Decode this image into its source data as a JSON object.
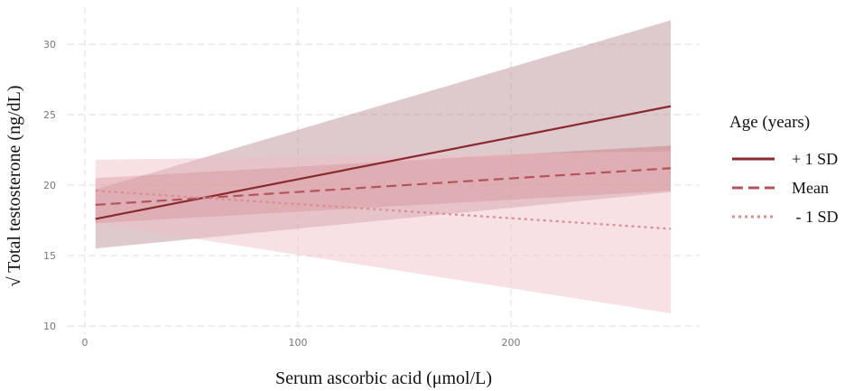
{
  "chart_data": {
    "type": "line",
    "title": "",
    "xlabel": "Serum ascorbic acid (μmol/L)",
    "ylabel": "√ Total testosterone (ng/dL)",
    "xlim": [
      -5,
      288
    ],
    "ylim": [
      9.5,
      32.2
    ],
    "x_ticks": [
      0,
      100,
      200
    ],
    "x_tick_labels": [
      "0",
      "100",
      "200"
    ],
    "y_ticks": [
      10,
      15,
      20,
      25,
      30
    ],
    "y_tick_labels": [
      "10",
      "15",
      "20",
      "25",
      "30"
    ],
    "grid": true,
    "legend": {
      "title": "Age (years)",
      "position": "right"
    },
    "series": [
      {
        "name": "+ 1 SD",
        "line_style": "solid",
        "color": "#8b2a2e",
        "band_color": "#b07f86",
        "band_opacity": 0.42,
        "x": [
          5,
          275
        ],
        "y": [
          17.6,
          25.6
        ],
        "lower": [
          15.5,
          19.5
        ],
        "upper": [
          19.7,
          31.7
        ]
      },
      {
        "name": "Mean",
        "line_style": "dashed",
        "color": "#b2545a",
        "band_color": "#c2676f",
        "band_opacity": 0.38,
        "x": [
          5,
          275
        ],
        "y": [
          18.6,
          21.2
        ],
        "lower": [
          17.3,
          19.6
        ],
        "upper": [
          20.5,
          22.8
        ]
      },
      {
        "name": " - 1 SD",
        "line_style": "dotted",
        "color": "#d98c95",
        "band_color": "#eebcc3",
        "band_opacity": 0.45,
        "x": [
          5,
          275
        ],
        "y": [
          19.6,
          16.9
        ],
        "lower": [
          17.3,
          10.9
        ],
        "upper": [
          21.8,
          22.4
        ]
      }
    ]
  }
}
